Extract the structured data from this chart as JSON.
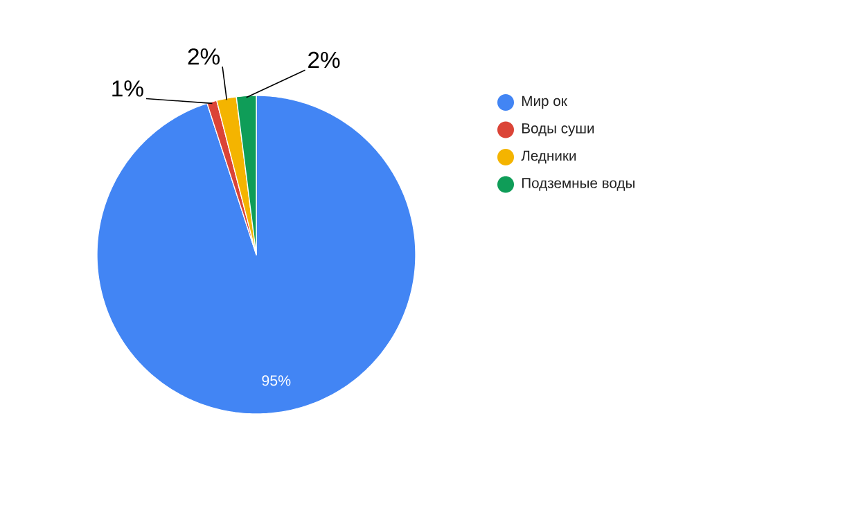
{
  "chart_data": {
    "type": "pie",
    "categories": [
      "Мир ок",
      "Воды суши",
      "Ледники",
      "Подземные воды"
    ],
    "values": [
      95,
      1,
      2,
      2
    ],
    "colors": [
      "#4285f4",
      "#db4437",
      "#f4b400",
      "#0f9d58"
    ],
    "value_labels": [
      "95%",
      "1%",
      "2%",
      "2%"
    ],
    "legend": "right"
  }
}
